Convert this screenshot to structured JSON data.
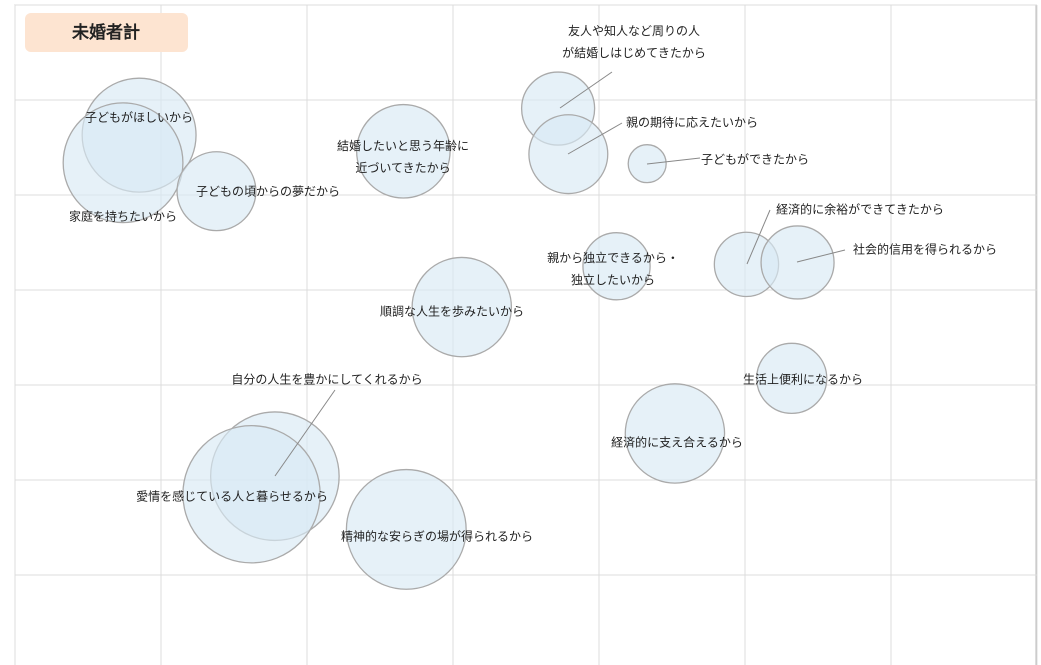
{
  "chart_data": {
    "type": "bubble",
    "title": "未婚者計",
    "labels": [
      "子どもがほしいから",
      "家庭を持ちたいから",
      "子どもの頃からの夢だから",
      "結婚したいと思う年齢に\n近づいてきたから",
      "友人や知人など周りの人\nが結婚しはじめてきたから",
      "親の期待に応えたいから",
      "子どもができたから",
      "経済的に余裕ができてきたから",
      "社会的信用を得られるから",
      "親から独立できるから・\n独立したいから",
      "順調な人生を歩みたいから",
      "生活上便利になるから",
      "経済的に支え合えるから",
      "自分の人生を豊かにしてくれるから",
      "愛情を感じている人と暮らせるから",
      "精神的な安らぎの場が得られるから"
    ],
    "x": [
      0.85,
      0.74,
      1.38,
      2.66,
      3.72,
      3.79,
      4.33,
      5.01,
      5.36,
      4.12,
      3.06,
      5.32,
      4.52,
      1.78,
      1.62,
      2.68
    ],
    "y": [
      5.63,
      5.34,
      5.04,
      5.46,
      5.91,
      5.43,
      5.33,
      4.27,
      4.29,
      4.25,
      3.82,
      3.07,
      2.49,
      2.04,
      1.85,
      1.48
    ],
    "sizes": [
      39,
      41,
      27,
      32,
      25,
      27,
      13,
      22,
      25,
      23,
      34,
      24,
      34,
      44,
      47,
      41
    ],
    "color": "#d9eaf4",
    "xlim": [
      0,
      7
    ],
    "ylim": [
      0,
      7
    ],
    "xticks": [
      0,
      1,
      2,
      3,
      4,
      5,
      6,
      7
    ],
    "yticks": [
      0,
      1,
      2,
      3,
      4,
      5,
      6,
      7
    ],
    "grid": true
  }
}
